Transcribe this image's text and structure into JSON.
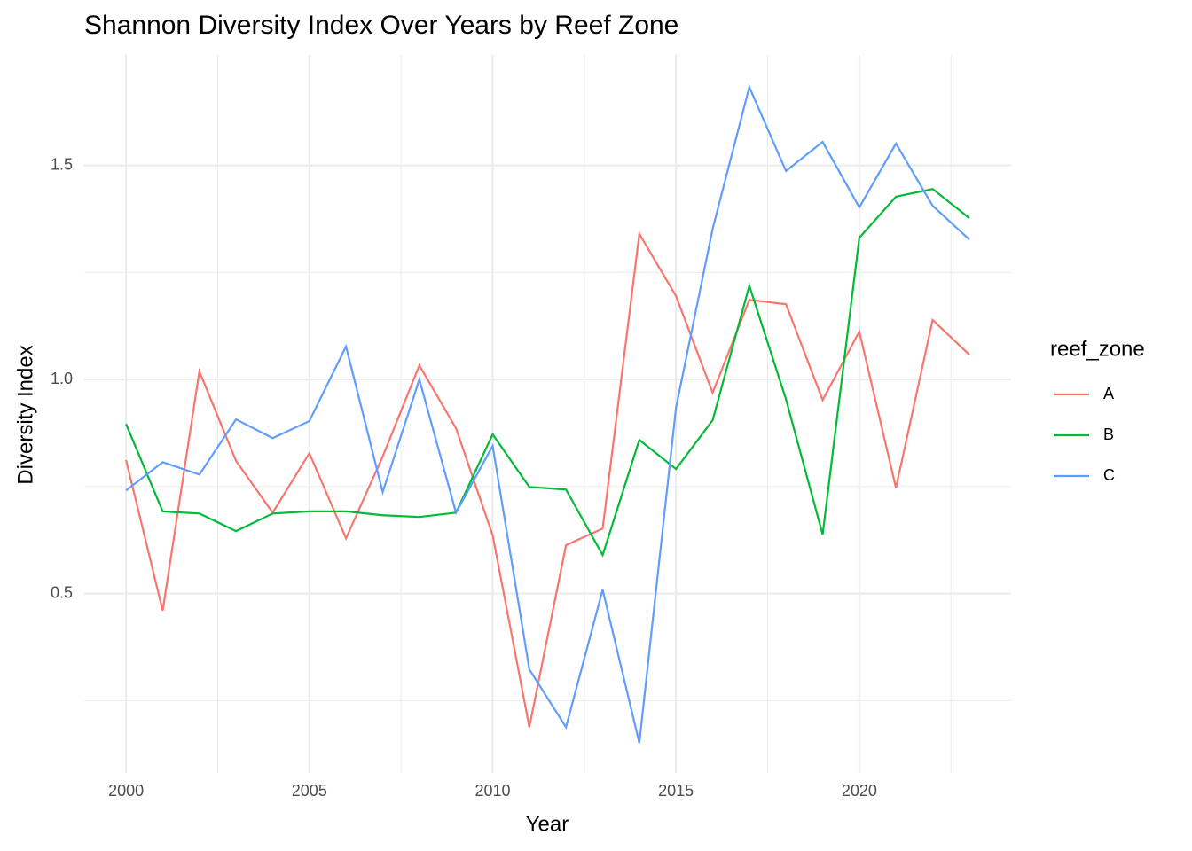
{
  "chart_data": {
    "type": "line",
    "title": "Shannon Diversity Index Over Years by Reef Zone",
    "x_label": "Year",
    "y_label": "Diversity Index",
    "legend_title": "reef_zone",
    "legend_position": "right",
    "x": [
      2000,
      2001,
      2002,
      2003,
      2004,
      2005,
      2006,
      2007,
      2008,
      2009,
      2010,
      2011,
      2012,
      2013,
      2014,
      2015,
      2016,
      2017,
      2018,
      2019,
      2020,
      2021,
      2022,
      2023
    ],
    "series": [
      {
        "name": "A",
        "color": "#F8766D",
        "values": [
          0.812,
          0.46,
          1.019,
          0.81,
          0.689,
          0.828,
          0.629,
          0.82,
          1.033,
          0.886,
          0.636,
          0.188,
          0.613,
          0.652,
          1.34,
          1.195,
          0.969,
          1.186,
          1.176,
          0.952,
          1.112,
          0.747,
          1.139,
          1.058
        ]
      },
      {
        "name": "B",
        "color": "#00BA38",
        "values": [
          0.896,
          0.692,
          0.687,
          0.646,
          0.687,
          0.692,
          0.692,
          0.683,
          0.679,
          0.689,
          0.872,
          0.749,
          0.743,
          0.59,
          0.859,
          0.791,
          0.905,
          1.219,
          0.954,
          0.638,
          1.331,
          1.427,
          1.445,
          1.377
        ]
      },
      {
        "name": "C",
        "color": "#619CFF",
        "values": [
          0.741,
          0.807,
          0.778,
          0.907,
          0.863,
          0.903,
          1.077,
          0.737,
          1.0,
          0.689,
          0.845,
          0.323,
          0.188,
          0.509,
          0.151,
          0.934,
          1.352,
          1.683,
          1.487,
          1.555,
          1.402,
          1.551,
          1.406,
          1.327
        ]
      }
    ],
    "xlim": [
      1998.86,
      2024.14
    ],
    "xticks": [
      2000,
      2005,
      2010,
      2015,
      2020
    ],
    "x_minor_ticks": [
      2002.5,
      2007.5,
      2012.5,
      2017.5,
      2022.5
    ],
    "ylim": [
      0.081,
      1.758
    ],
    "yticks": [
      {
        "value": 0.5,
        "label": "0.5"
      },
      {
        "value": 1.0,
        "label": "1.0"
      },
      {
        "value": 1.5,
        "label": "1.5"
      }
    ],
    "y_minor_ticks": [
      0.25,
      0.75,
      1.25
    ],
    "grid": true
  }
}
